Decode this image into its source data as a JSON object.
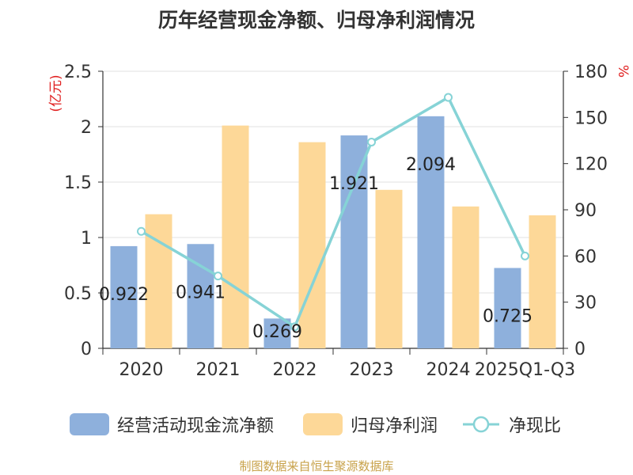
{
  "chart_data": {
    "type": "bar",
    "title": "历年经营现金净额、归母净利润情况",
    "categories": [
      "2020",
      "2021",
      "2022",
      "2023",
      "2024",
      "2025Q1-Q3"
    ],
    "series": [
      {
        "name": "经营活动现金流净额",
        "type": "bar",
        "axis": "left",
        "color": "#8eb0dc",
        "values": [
          0.922,
          0.941,
          0.269,
          1.921,
          2.094,
          0.725
        ],
        "labels": [
          "0.922",
          "0.941",
          "0.269",
          "1.921",
          "2.094",
          "0.725"
        ]
      },
      {
        "name": "归母净利润",
        "type": "bar",
        "axis": "left",
        "color": "#fdd898",
        "values": [
          1.21,
          2.01,
          1.86,
          1.43,
          1.28,
          1.2
        ]
      },
      {
        "name": "净现比",
        "type": "line",
        "axis": "right",
        "color": "#86d3d6",
        "values": [
          76,
          47,
          14,
          134,
          163,
          60
        ]
      }
    ],
    "y_left": {
      "label": "(亿元)",
      "min": 0,
      "max": 2.5,
      "ticks": [
        0,
        0.5,
        1,
        1.5,
        2,
        2.5
      ],
      "tick_labels": [
        "0",
        "0.5",
        "1",
        "1.5",
        "2",
        "2.5"
      ]
    },
    "y_right": {
      "label": "%",
      "min": 0,
      "max": 180,
      "ticks": [
        0,
        30,
        60,
        90,
        120,
        150,
        180
      ],
      "tick_labels": [
        "0",
        "30",
        "60",
        "90",
        "120",
        "150",
        "180"
      ]
    },
    "grid": true,
    "legend_position": "bottom"
  },
  "source_note": "制图数据来自恒生聚源数据库"
}
